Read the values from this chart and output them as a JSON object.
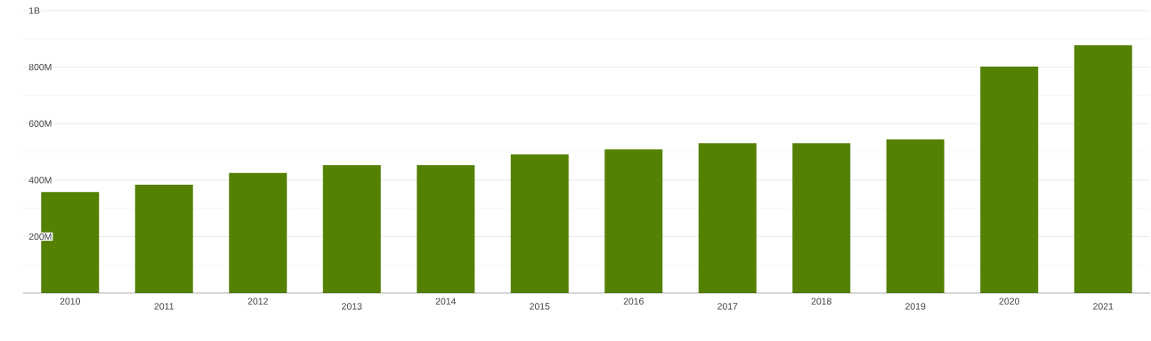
{
  "chart_data": {
    "type": "bar",
    "categories": [
      "2010",
      "2011",
      "2012",
      "2013",
      "2014",
      "2015",
      "2016",
      "2017",
      "2018",
      "2019",
      "2020",
      "2021"
    ],
    "values": [
      358000000,
      384000000,
      425000000,
      453000000,
      453000000,
      491000000,
      509000000,
      531000000,
      531000000,
      544000000,
      802000000,
      877000000
    ],
    "color": "#548102",
    "ylim": [
      0,
      1000000000
    ],
    "yticks": [
      {
        "value": 100000000,
        "label": null
      },
      {
        "value": 200000000,
        "label": "200M"
      },
      {
        "value": 300000000,
        "label": null
      },
      {
        "value": 400000000,
        "label": "400M"
      },
      {
        "value": 500000000,
        "label": null
      },
      {
        "value": 600000000,
        "label": "600M"
      },
      {
        "value": 700000000,
        "label": null
      },
      {
        "value": 800000000,
        "label": "800M"
      },
      {
        "value": 900000000,
        "label": null
      },
      {
        "value": 1000000000,
        "label": "1B"
      }
    ],
    "grid": "y"
  }
}
